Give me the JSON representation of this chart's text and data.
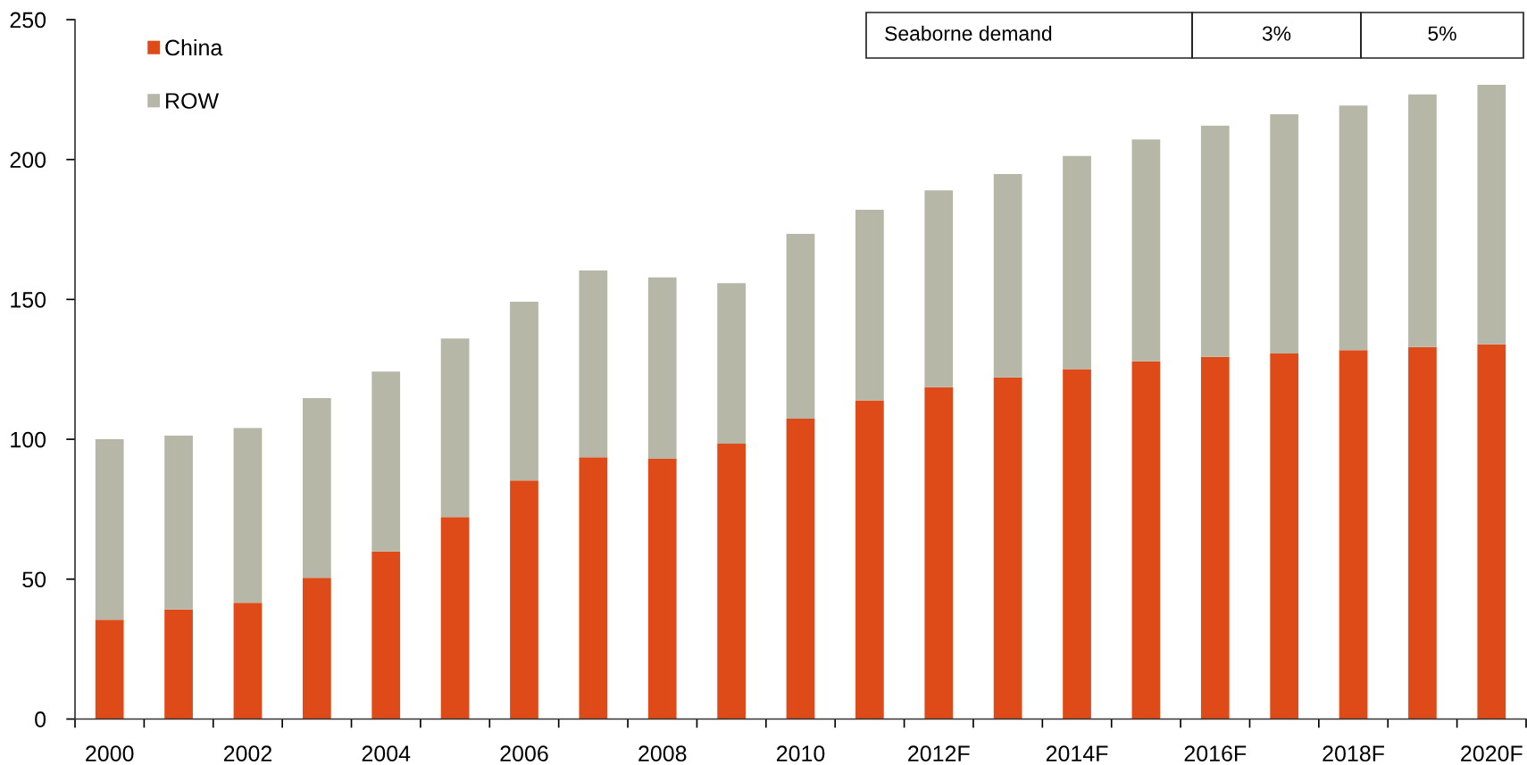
{
  "chart_data": {
    "type": "bar",
    "stacked": true,
    "categories": [
      "2000",
      null,
      "2002",
      null,
      "2004",
      null,
      "2006",
      null,
      "2008",
      null,
      "2010",
      null,
      "2012F",
      null,
      "2014F",
      null,
      "2016F",
      null,
      "2018F",
      null,
      "2020F"
    ],
    "series": [
      {
        "name": "China",
        "color": "#df4b18",
        "values": [
          35.5,
          39.2,
          41.6,
          50.5,
          59.9,
          72.2,
          85.3,
          93.6,
          93.0,
          98.4,
          107.4,
          113.9,
          118.6,
          122.1,
          125.1,
          127.9,
          129.5,
          130.7,
          131.9,
          133.0,
          133.9
        ]
      },
      {
        "name": "ROW",
        "color": "#b6b7a6",
        "values": [
          64.5,
          62.1,
          62.4,
          64.2,
          64.3,
          63.8,
          63.9,
          66.7,
          64.9,
          57.4,
          66.0,
          68.1,
          70.4,
          72.7,
          76.2,
          79.3,
          82.6,
          85.5,
          87.4,
          90.3,
          92.8
        ]
      }
    ],
    "ylim": [
      0,
      250
    ],
    "yticks": [
      0,
      50,
      100,
      150,
      200,
      250
    ],
    "legend": "top left",
    "grid": false,
    "annotations": [
      "Seaborne demand",
      "3%",
      "5%"
    ]
  }
}
